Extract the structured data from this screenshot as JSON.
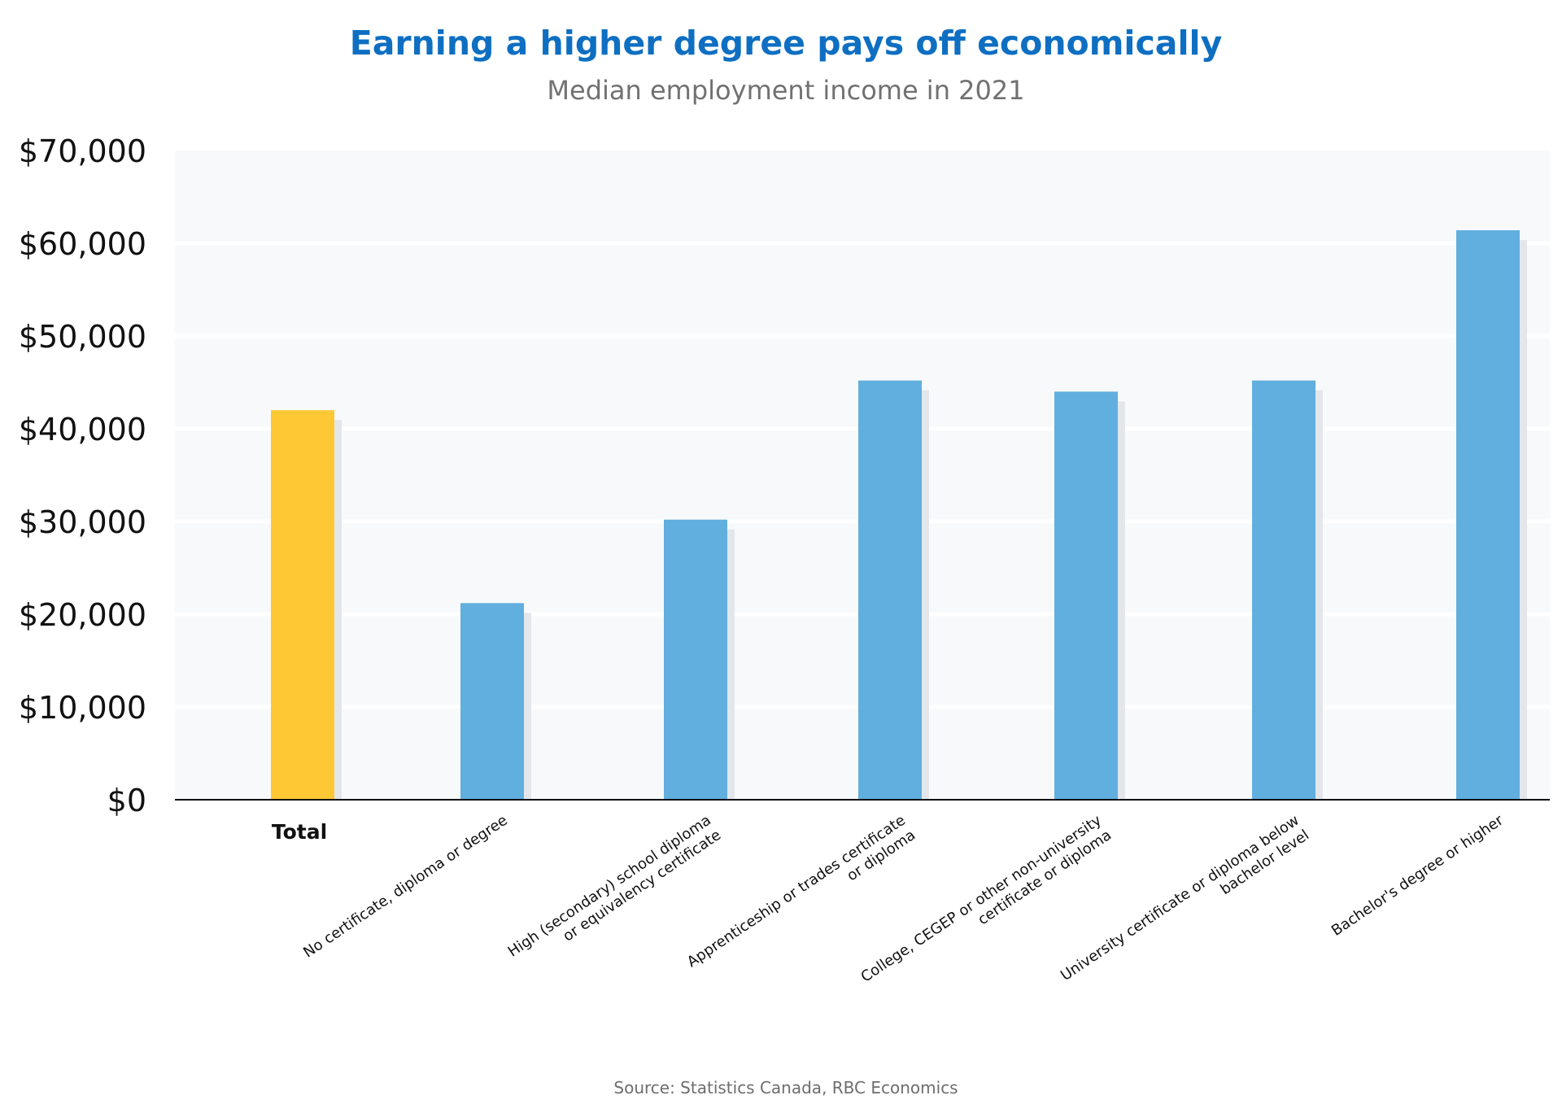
{
  "colors": {
    "title": "#0e6fc2",
    "bar_total": "#fdc833",
    "bar_default": "#60afdf",
    "plot_background": "#f7f9fb",
    "gridline": "#ffffff",
    "axis": "#111111",
    "bar_shadow": "#e3e7eb"
  },
  "chart_data": {
    "type": "bar",
    "title": "Earning a higher degree pays off economically",
    "subtitle": "Median employment income in 2021",
    "source": "Source: Statistics Canada, RBC Economics",
    "xlabel": "",
    "ylabel": "",
    "ylim": [
      0,
      70000
    ],
    "yticks": [
      0,
      10000,
      20000,
      30000,
      40000,
      50000,
      60000,
      70000
    ],
    "ytick_labels": [
      "$0",
      "$10,000",
      "$20,000",
      "$30,000",
      "$40,000",
      "$50,000",
      "$60,000",
      "$70,000"
    ],
    "grid": true,
    "legend": "none",
    "categories": [
      "Total",
      "No certificate, diploma or degree",
      "High (secondary) school diploma or equivalency certificate",
      "Apprenticeship or trades certificate or diploma",
      "College, CEGEP or other non-university certificate or diploma",
      "University certificate or diploma below bachelor level",
      "Bachelor's degree or higher"
    ],
    "category_label_lines": [
      [
        "Total"
      ],
      [
        "No certificate, diploma or degree"
      ],
      [
        "High (secondary) school diploma",
        "or equivalency certificate"
      ],
      [
        "Apprenticeship or trades certificate",
        "or diploma"
      ],
      [
        "College, CEGEP or other non-university",
        "certificate or diploma"
      ],
      [
        "University certificate or diploma below",
        "bachelor level"
      ],
      [
        "Bachelor's degree or higher"
      ]
    ],
    "values": [
      42000,
      21200,
      30200,
      45200,
      44000,
      45200,
      61400
    ],
    "highlight_category": "Total"
  }
}
